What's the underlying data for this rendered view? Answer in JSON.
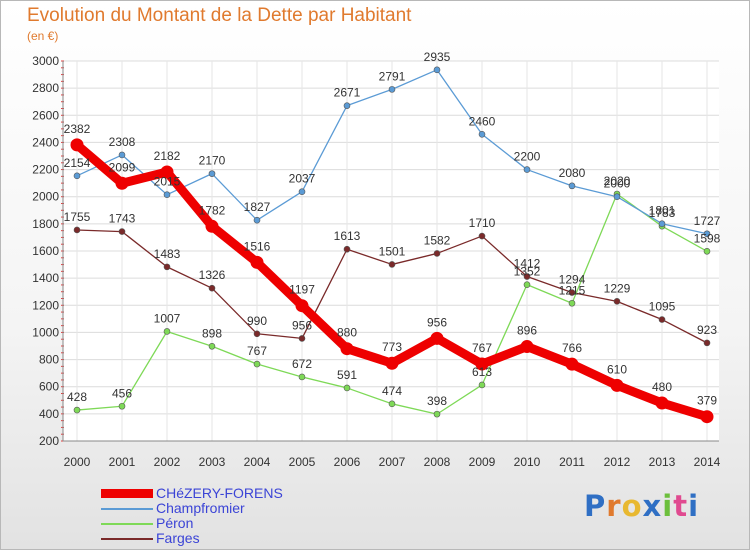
{
  "title": "Evolution du Montant de la Dette par Habitant",
  "subtitle": "(en €)",
  "logo": "Proxiti",
  "chart_data": {
    "type": "line",
    "title": "Evolution du Montant de la Dette par Habitant",
    "subtitle": "(en €)",
    "x": [
      "2000",
      "2001",
      "2002",
      "2003",
      "2004",
      "2005",
      "2006",
      "2007",
      "2008",
      "2009",
      "2010",
      "2011",
      "2012",
      "2013",
      "2014"
    ],
    "ylim": [
      200,
      3000
    ],
    "yticks": [
      200,
      400,
      600,
      800,
      1000,
      1200,
      1400,
      1600,
      1800,
      2000,
      2200,
      2400,
      2600,
      2800,
      3000
    ],
    "grid": true,
    "legend_position": "bottom-left",
    "series": [
      {
        "name": "CHéZERY-FORENS",
        "color": "#ee0000",
        "values": [
          2382,
          2099,
          2182,
          1782,
          1516,
          1197,
          880,
          773,
          956,
          767,
          896,
          766,
          610,
          480,
          379
        ]
      },
      {
        "name": "Champfromier",
        "color": "#5b9bd5",
        "values": [
          2154,
          2308,
          2015,
          2170,
          1827,
          2037,
          2671,
          2791,
          2935,
          2460,
          2200,
          2080,
          2000,
          1801,
          1727
        ]
      },
      {
        "name": "Péron",
        "color": "#7ed957",
        "values": [
          428,
          456,
          1007,
          898,
          767,
          672,
          591,
          474,
          398,
          613,
          1352,
          1215,
          2020,
          1783,
          1598
        ]
      },
      {
        "name": "Farges",
        "color": "#7a2a2a",
        "values": [
          1755,
          1743,
          1483,
          1326,
          990,
          956,
          1613,
          1501,
          1582,
          1710,
          1412,
          1294,
          1229,
          1095,
          923
        ]
      }
    ]
  }
}
